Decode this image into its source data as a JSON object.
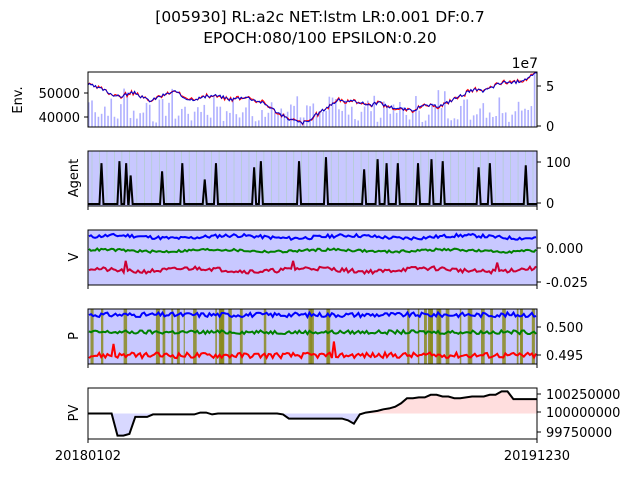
{
  "title_line1": "[005930] RL:a2c NET:lstm LR:0.001 DF:0.7",
  "title_line2": "EPOCH:080/100 EPSILON:0.20",
  "x_ticks": [
    "20180102",
    "20191230"
  ],
  "chart_data": [
    {
      "type": "line",
      "panel": "env",
      "ylabel": "Env.",
      "y_left_ticks": [
        "50000",
        "40000"
      ],
      "y_right_ticks": [
        "5",
        "0"
      ],
      "right_axis_offset_text": "1e7",
      "ylim": [
        36500,
        56500
      ],
      "series": [
        {
          "values": [
            52000,
            51000,
            50000,
            48500,
            47500,
            48500,
            49000,
            47000,
            46000,
            47500,
            48500,
            49500,
            47500,
            46500,
            47000,
            47500,
            48000,
            47500,
            46500,
            47000,
            47500,
            46500,
            45500,
            44000,
            42000,
            40000,
            39000,
            38000,
            38500,
            41000,
            43000,
            45000,
            46500,
            45500,
            46000,
            45000,
            44500,
            45500,
            44000,
            43500,
            43000,
            42500,
            43500,
            44500,
            44000,
            44500,
            46000,
            47500,
            49000,
            50000,
            49500,
            50500,
            52000,
            53000,
            52500,
            53500,
            54500,
            56000
          ]
        }
      ],
      "volume_values_1e7": [
        3.2,
        1.8,
        2.6,
        1.2,
        3.8,
        2.1,
        1.5,
        2.9,
        1.1,
        2.4,
        3.3,
        1.6,
        2.2,
        1.3,
        2.7,
        1.9,
        3.1,
        1.4,
        2.5,
        1.7,
        2.8,
        1.2,
        2.3,
        3.5,
        1.6,
        2.1,
        2.9,
        1.3,
        3.7,
        2.4,
        1.5,
        2.6,
        1.8,
        3.2,
        1.2,
        2.2,
        2.7,
        1.4,
        3.0,
        1.9,
        2.3,
        1.6,
        2.8,
        1.3,
        2.5,
        3.4,
        1.7,
        2.0,
        2.6,
        1.5,
        3.1,
        2.2,
        1.8,
        2.9,
        1.4,
        3.6,
        2.4,
        5.6
      ]
    },
    {
      "type": "line",
      "panel": "agent",
      "ylabel": "Agent",
      "y_right_ticks": [
        "100",
        "0"
      ],
      "ylim": [
        -5,
        130
      ],
      "action_spikes": [
        {
          "x": 0.03,
          "h": 100
        },
        {
          "x": 0.07,
          "h": 105
        },
        {
          "x": 0.085,
          "h": 100
        },
        {
          "x": 0.095,
          "h": 70
        },
        {
          "x": 0.165,
          "h": 80
        },
        {
          "x": 0.21,
          "h": 100
        },
        {
          "x": 0.26,
          "h": 60
        },
        {
          "x": 0.285,
          "h": 100
        },
        {
          "x": 0.37,
          "h": 90
        },
        {
          "x": 0.385,
          "h": 105
        },
        {
          "x": 0.47,
          "h": 105
        },
        {
          "x": 0.53,
          "h": 115
        },
        {
          "x": 0.615,
          "h": 85
        },
        {
          "x": 0.645,
          "h": 110
        },
        {
          "x": 0.665,
          "h": 100
        },
        {
          "x": 0.69,
          "h": 100
        },
        {
          "x": 0.735,
          "h": 100
        },
        {
          "x": 0.765,
          "h": 110
        },
        {
          "x": 0.79,
          "h": 105
        },
        {
          "x": 0.87,
          "h": 90
        },
        {
          "x": 0.895,
          "h": 100
        },
        {
          "x": 0.975,
          "h": 95
        }
      ]
    },
    {
      "type": "line",
      "panel": "value",
      "ylabel": "V",
      "y_right_ticks": [
        "0.000",
        "-0.025"
      ],
      "ylim": [
        -0.028,
        0.012
      ],
      "series": [
        {
          "color": "#0000ff",
          "mean": 0.007,
          "amp": 0.0025
        },
        {
          "color": "#008000",
          "mean": -0.003,
          "amp": 0.0018
        },
        {
          "color": "#cc0033",
          "mean": -0.017,
          "amp": 0.003
        }
      ]
    },
    {
      "type": "line",
      "panel": "policy",
      "ylabel": "P",
      "y_right_ticks": [
        "0.500",
        "0.495"
      ],
      "ylim": [
        0.494,
        0.5035
      ],
      "series": [
        {
          "color": "#0000ff",
          "mean": 0.5025,
          "amp": 0.0005
        },
        {
          "color": "#008000",
          "mean": 0.4995,
          "amp": 0.0004
        },
        {
          "color": "#ff0000",
          "mean": 0.4955,
          "amp": 0.0006
        }
      ]
    },
    {
      "type": "area",
      "panel": "pv",
      "ylabel": "PV",
      "y_right_ticks": [
        "100250000",
        "100000000",
        "99750000"
      ],
      "ylim": [
        99700000,
        100300000
      ],
      "baseline": 100000000,
      "series": [
        {
          "color": "#000000",
          "values": [
            100000000,
            100000000,
            100000000,
            100000000,
            100000000,
            99740000,
            99740000,
            99760000,
            99960000,
            99960000,
            99960000,
            99990000,
            99990000,
            99990000,
            99990000,
            99990000,
            99990000,
            99990000,
            99990000,
            100010000,
            100010000,
            99990000,
            100000000,
            100000000,
            100000000,
            100000000,
            100000000,
            100000000,
            100000000,
            100000000,
            100000000,
            100000000,
            100000000,
            99990000,
            99940000,
            99940000,
            99940000,
            99940000,
            99940000,
            99940000,
            99940000,
            99940000,
            99940000,
            99940000,
            99920000,
            99880000,
            99990000,
            100010000,
            100020000,
            100030000,
            100050000,
            100060000,
            100080000,
            100120000,
            100180000,
            100180000,
            100190000,
            100190000,
            100220000,
            100220000,
            100200000,
            100200000,
            100180000,
            100180000,
            100190000,
            100200000,
            100200000,
            100200000,
            100220000,
            100220000,
            100260000,
            100260000,
            100170000,
            100170000,
            100170000,
            100170000,
            100170000
          ]
        }
      ]
    }
  ]
}
